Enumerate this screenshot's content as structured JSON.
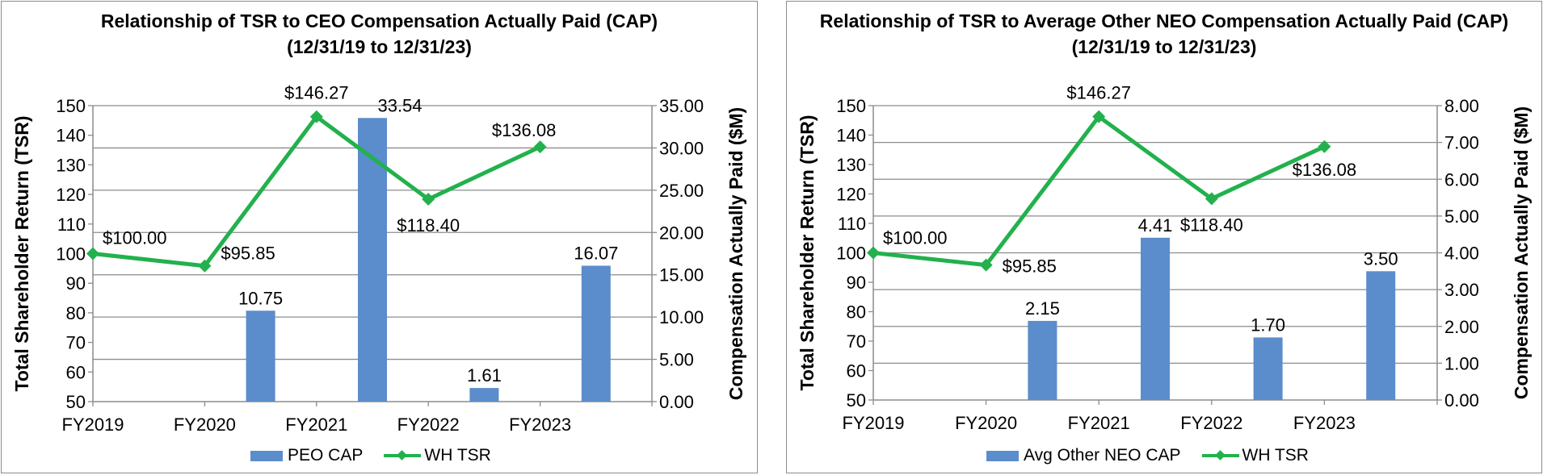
{
  "colors": {
    "bar": "#5b8ccc",
    "line": "#22b14c",
    "grid": "#8c8c8c",
    "text": "#000000"
  },
  "chart_data": [
    {
      "type": "bar+line",
      "title_line1": "Relationship of TSR to CEO Compensation Actually Paid (CAP)",
      "title_line2": "(12/31/19 to 12/31/23)",
      "categories": [
        "FY2019",
        "FY2020",
        "FY2021",
        "FY2022",
        "FY2023"
      ],
      "ylabel_left": "Total Shareholder Return (TSR)",
      "ylabel_right": "Compensation Actually Paid ($M)",
      "ylim_left": [
        50,
        150
      ],
      "left_ticks": [
        "50",
        "60",
        "70",
        "80",
        "90",
        "100",
        "110",
        "120",
        "130",
        "140",
        "150"
      ],
      "ylim_right": [
        0,
        35
      ],
      "right_ticks": [
        "0.00",
        "5.00",
        "10.00",
        "15.00",
        "20.00",
        "25.00",
        "30.00",
        "35.00"
      ],
      "bar_series": {
        "name": "PEO CAP",
        "values": [
          0,
          10.75,
          33.54,
          1.61,
          16.07
        ],
        "labels": [
          "",
          "10.75",
          "33.54",
          "1.61",
          "16.07"
        ]
      },
      "line_series": {
        "name": "WH TSR",
        "values": [
          100.0,
          95.85,
          146.27,
          118.4,
          136.08
        ],
        "labels": [
          "$100.00",
          "$95.85",
          "$146.27",
          "$118.40",
          "$136.08"
        ]
      },
      "legend": [
        "PEO CAP",
        "WH TSR"
      ]
    },
    {
      "type": "bar+line",
      "title_line1": "Relationship of TSR to Average Other NEO Compensation Actually Paid (CAP)",
      "title_line2": "(12/31/19 to 12/31/23)",
      "categories": [
        "FY2019",
        "FY2020",
        "FY2021",
        "FY2022",
        "FY2023"
      ],
      "ylabel_left": "Total Shareholder Return (TSR)",
      "ylabel_right": "Compensation Actually Paid ($M)",
      "ylim_left": [
        50,
        150
      ],
      "left_ticks": [
        "50",
        "60",
        "70",
        "80",
        "90",
        "100",
        "110",
        "120",
        "130",
        "140",
        "150"
      ],
      "ylim_right": [
        0,
        8
      ],
      "right_ticks": [
        "0.00",
        "1.00",
        "2.00",
        "3.00",
        "4.00",
        "5.00",
        "6.00",
        "7.00",
        "8.00"
      ],
      "bar_series": {
        "name": "Avg Other NEO CAP",
        "values": [
          0,
          2.15,
          4.41,
          1.7,
          3.5
        ],
        "labels": [
          "",
          "2.15",
          "4.41",
          "1.70",
          "3.50"
        ]
      },
      "line_series": {
        "name": "WH TSR",
        "values": [
          100.0,
          95.85,
          146.27,
          118.4,
          136.08
        ],
        "labels": [
          "$100.00",
          "$95.85",
          "$146.27",
          "$118.40",
          "$136.08"
        ]
      },
      "legend": [
        "Avg Other NEO CAP",
        "WH TSR"
      ]
    }
  ]
}
